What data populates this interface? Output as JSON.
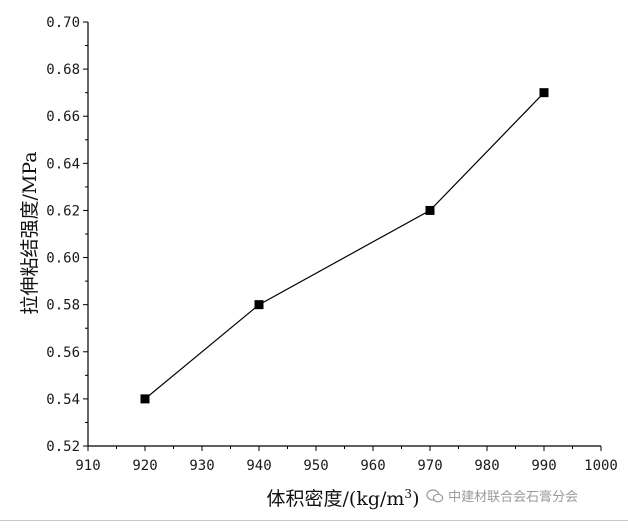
{
  "chart_data": {
    "type": "line",
    "x": [
      920,
      940,
      970,
      990
    ],
    "y": [
      0.54,
      0.58,
      0.62,
      0.67
    ],
    "xlabel_main": "体积密度/(kg/m",
    "xlabel_sup": "3",
    "xlabel_end": ")",
    "ylabel": "拉伸粘结强度/MPa",
    "xlim": [
      910,
      1000
    ],
    "ylim": [
      0.52,
      0.7
    ],
    "xticks": [
      910,
      920,
      930,
      940,
      950,
      960,
      970,
      980,
      990,
      1000
    ],
    "yticks": [
      "0.52",
      "0.54",
      "0.56",
      "0.58",
      "0.60",
      "0.62",
      "0.64",
      "0.66",
      "0.68",
      "0.70"
    ],
    "marker": "square",
    "grid": false,
    "line_color": "#000000"
  },
  "watermark": {
    "text": "中建材联合会石膏分会",
    "icon": "wechat-icon"
  }
}
